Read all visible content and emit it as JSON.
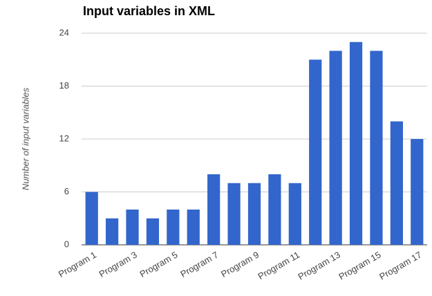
{
  "chart_data": {
    "type": "bar",
    "title": "Input variables in XML",
    "y_label": "Number of input variables",
    "categories": [
      "Program 1",
      null,
      "Program 3",
      null,
      "Program 5",
      null,
      "Program 7",
      null,
      "Program 9",
      null,
      "Program 11",
      null,
      "Program 13",
      null,
      "Program 15",
      null,
      "Program 17"
    ],
    "values": [
      6,
      3,
      4,
      3,
      4,
      4,
      8,
      7,
      7,
      8,
      7,
      21,
      22,
      23,
      22,
      14,
      12
    ],
    "color": "#3366cc",
    "ylim": [
      0,
      24
    ],
    "yticks": [
      0,
      6,
      12,
      18,
      24
    ],
    "grid": true
  }
}
